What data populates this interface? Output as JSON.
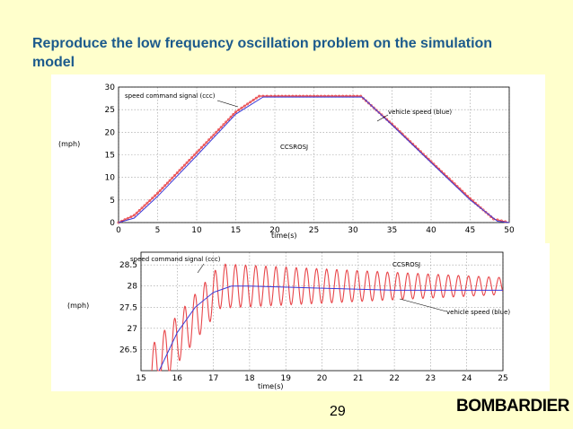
{
  "slide": {
    "title": "Reproduce the low frequency oscillation problem on the simulation model",
    "page_number": "29",
    "logo_text": "BOMBARDIER"
  },
  "colors": {
    "background": "#ffffcc",
    "title": "#1c5a8c",
    "line_red": "#e8464a",
    "line_blue": "#3a3ad8",
    "grid": "#9a9a9a"
  },
  "chart_data": [
    {
      "type": "line",
      "xlabel": "time(s)",
      "ylabel": "(mph)",
      "xlim": [
        0,
        50
      ],
      "ylim": [
        0,
        30
      ],
      "x_ticks": [
        "0",
        "5",
        "10",
        "15",
        "20",
        "25",
        "30",
        "35",
        "40",
        "45",
        "50"
      ],
      "y_ticks": [
        "0",
        "5",
        "10",
        "15",
        "20",
        "25",
        "30"
      ],
      "grid": true,
      "annotations": [
        "speed command signal (ccc)",
        "vehicle speed (blue)",
        "CCSROSJ"
      ],
      "series": [
        {
          "color": "red",
          "x": [
            0,
            2,
            5,
            10,
            15,
            18,
            20,
            25,
            31,
            35,
            40,
            45,
            48,
            50
          ],
          "y": [
            0,
            1.6,
            6.5,
            15.5,
            24.5,
            28.0,
            28.0,
            28.0,
            28.0,
            21.8,
            13.5,
            5.3,
            0.8,
            0
          ]
        },
        {
          "color": "blue",
          "x": [
            0,
            2,
            5,
            10,
            15,
            18.5,
            20,
            25,
            31.2,
            35,
            40,
            45,
            48.5,
            50
          ],
          "y": [
            0,
            1.0,
            5.8,
            14.8,
            24.0,
            27.8,
            27.8,
            27.8,
            27.8,
            21.6,
            13.3,
            5.0,
            0.3,
            0
          ]
        }
      ]
    },
    {
      "type": "line",
      "xlabel": "time(s)",
      "ylabel": "(mph)",
      "xlim": [
        15,
        25
      ],
      "ylim": [
        26,
        28.8
      ],
      "x_ticks": [
        "15",
        "16",
        "17",
        "18",
        "19",
        "20",
        "21",
        "22",
        "23",
        "24",
        "25"
      ],
      "y_ticks": [
        "26.5",
        "27",
        "27.5",
        "28",
        "28.5"
      ],
      "grid": true,
      "annotations": [
        "speed command signal (ccc)",
        "CCSROSJ",
        "vehicle speed (blue)"
      ],
      "series": [
        {
          "color": "red",
          "description_free": true,
          "oscillation_center": 28.0,
          "oscillation_amplitude_start": 0.6,
          "oscillation_amplitude_end": 0.2,
          "period_s": 0.28
        },
        {
          "color": "blue",
          "x": [
            15.5,
            16.0,
            16.5,
            17.0,
            17.5,
            18.0,
            20,
            22,
            25
          ],
          "y": [
            26.0,
            26.9,
            27.5,
            27.85,
            28.0,
            28.0,
            27.95,
            27.9,
            27.9
          ]
        }
      ]
    }
  ]
}
